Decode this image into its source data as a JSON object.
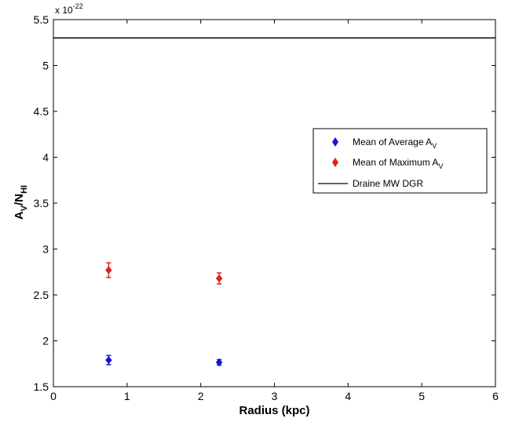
{
  "chart_data": {
    "type": "scatter",
    "xlabel": "Radius (kpc)",
    "ylabel": {
      "main": "A",
      "sub1": "V",
      "mid": "/N",
      "sub2": "HI"
    },
    "y_multiplier": {
      "base": "x 10",
      "exponent": "-22"
    },
    "xlim": [
      0,
      6
    ],
    "ylim": [
      1.5,
      5.5
    ],
    "x_ticks": [
      "0",
      "1",
      "2",
      "3",
      "4",
      "5",
      "6"
    ],
    "y_ticks": [
      "1.5",
      "2",
      "2.5",
      "3",
      "3.5",
      "4",
      "4.5",
      "5",
      "5.5"
    ],
    "grid": false,
    "legend_position": "right",
    "series": [
      {
        "name": "Mean of Average A",
        "name_sub": "V",
        "color": "#1414d4",
        "marker": "diamond",
        "x": [
          0.75,
          2.25
        ],
        "y": [
          1.79,
          1.765
        ],
        "yerr": [
          0.05,
          0.03
        ]
      },
      {
        "name": "Mean of Maximum A",
        "name_sub": "V",
        "color": "#e0201c",
        "marker": "diamond",
        "x": [
          0.75,
          2.25
        ],
        "y": [
          2.77,
          2.68
        ],
        "yerr": [
          0.08,
          0.06
        ]
      }
    ],
    "reference_line": {
      "name": "Draine MW DGR",
      "y": 5.3,
      "color": "#000000"
    }
  }
}
